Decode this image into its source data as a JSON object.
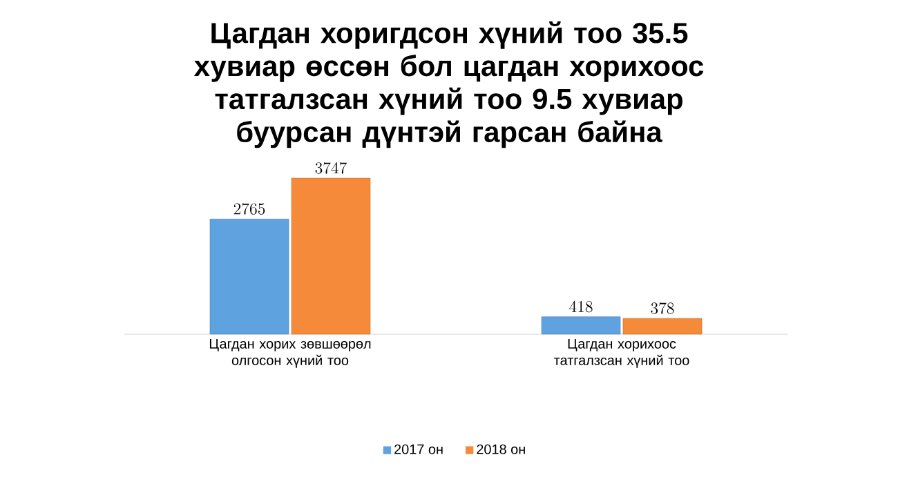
{
  "chart_data": {
    "type": "bar",
    "title": "Цагдан хоригдсон хүний тоо 35.5 хувиар өссөн бол цагдан хорихоос татгалзсан хүний тоо 9.5 хувиар буурсан дүнтэй гарсан байна",
    "categories": [
      "Цагдан хорих зөвшөөрөл олгосон хүний тоо",
      "Цагдан хорихоос татгалзсан хүний тоо"
    ],
    "series": [
      {
        "name": "2017 он",
        "color": "#5fa2e0",
        "values": [
          2765,
          418
        ]
      },
      {
        "name": "2018 он",
        "color": "#f58a3a",
        "values": [
          3747,
          378
        ]
      }
    ],
    "data_labels": true,
    "legend": "bottom",
    "grid": false
  }
}
